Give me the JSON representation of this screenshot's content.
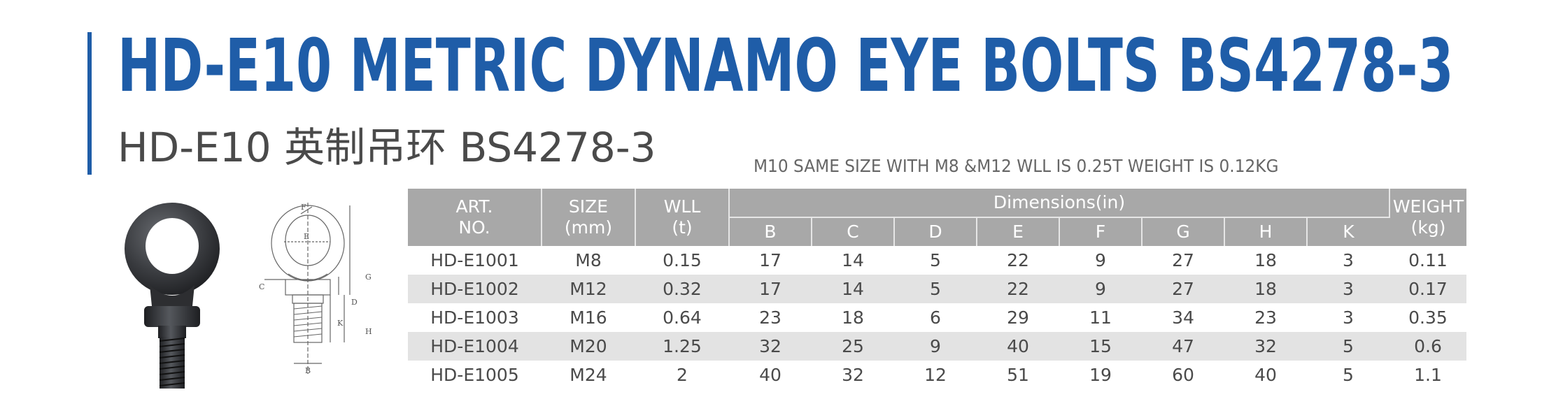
{
  "header": {
    "title": "HD-E10 METRIC DYNAMO EYE BOLTS BS4278-3",
    "subtitle": "HD-E10 英制吊环 BS4278-3",
    "note": "M10 SAME SIZE WITH M8 &M12  WLL IS 0.25T WEIGHT IS 0.12KG",
    "accent_color": "#1f5da8"
  },
  "images": {
    "photo": "eye-bolt-photo",
    "drawing": "eye-bolt-technical-drawing"
  },
  "drawing_labels": {
    "f": "F",
    "e": "E",
    "c": "C",
    "d": "D",
    "g": "G",
    "k": "K",
    "h": "H",
    "b": "B"
  },
  "table": {
    "header": {
      "art_line1": "ART.",
      "art_line2": "NO.",
      "size_line1": "SIZE",
      "size_line2": "(mm)",
      "wll_line1": "WLL",
      "wll_line2": "(t)",
      "dimensions": "Dimensions(in)",
      "weight_line1": "WEIGHT",
      "weight_line2": "(kg)",
      "dims": [
        "B",
        "C",
        "D",
        "E",
        "F",
        "G",
        "H",
        "K"
      ]
    },
    "rows": [
      {
        "art": "HD-E1001",
        "size": "M8",
        "wll": "0.15",
        "b": "17",
        "c": "14",
        "d": "5",
        "e": "22",
        "f": "9",
        "g": "27",
        "h": "18",
        "k": "3",
        "weight": "0.11"
      },
      {
        "art": "HD-E1002",
        "size": "M12",
        "wll": "0.32",
        "b": "17",
        "c": "14",
        "d": "5",
        "e": "22",
        "f": "9",
        "g": "27",
        "h": "18",
        "k": "3",
        "weight": "0.17"
      },
      {
        "art": "HD-E1003",
        "size": "M16",
        "wll": "0.64",
        "b": "23",
        "c": "18",
        "d": "6",
        "e": "29",
        "f": "11",
        "g": "34",
        "h": "23",
        "k": "3",
        "weight": "0.35"
      },
      {
        "art": "HD-E1004",
        "size": "M20",
        "wll": "1.25",
        "b": "32",
        "c": "25",
        "d": "9",
        "e": "40",
        "f": "15",
        "g": "47",
        "h": "32",
        "k": "5",
        "weight": "0.6"
      },
      {
        "art": "HD-E1005",
        "size": "M24",
        "wll": "2",
        "b": "40",
        "c": "32",
        "d": "12",
        "e": "51",
        "f": "19",
        "g": "60",
        "h": "40",
        "k": "5",
        "weight": "1.1"
      }
    ]
  }
}
